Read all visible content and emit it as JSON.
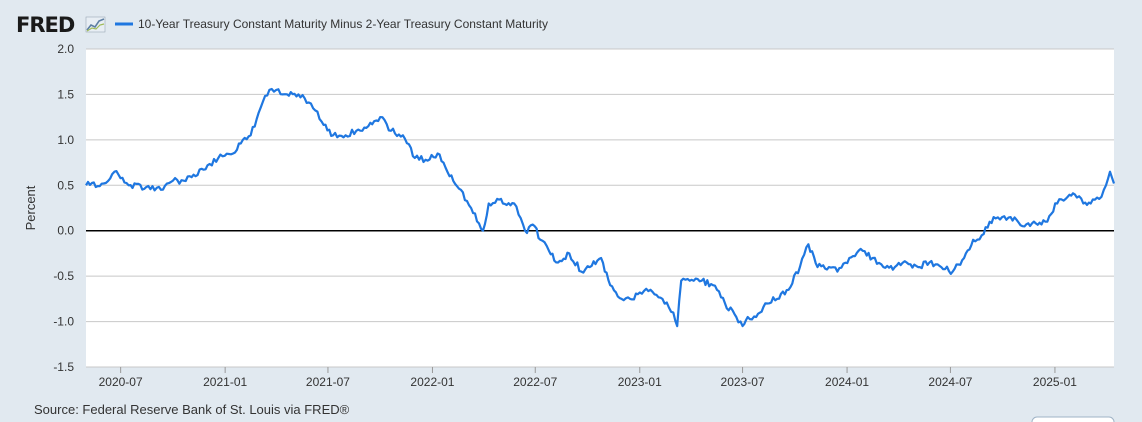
{
  "header": {
    "logo_text": "FRED",
    "logo_icon": "fred-chart-icon"
  },
  "source": "Source: Federal Reserve Bank of St. Louis via FRED®",
  "colors": {
    "series": "#1f77e0",
    "zero_line": "#000000",
    "grid": "#c8c8c8",
    "plot_bg": "#ffffff",
    "page_bg": "#e1e9f0"
  },
  "chart_data": {
    "type": "line",
    "title": "",
    "xlabel": "",
    "ylabel": "Percent",
    "ylim": [
      -1.5,
      2.0
    ],
    "xlim": [
      "2020-05-01",
      "2025-04-15"
    ],
    "yticks": [
      2.0,
      1.5,
      1.0,
      0.5,
      0.0,
      -0.5,
      -1.0,
      -1.5
    ],
    "ytick_labels": [
      "2.0",
      "1.5",
      "1.0",
      "0.5",
      "0.0",
      "-0.5",
      "-1.0",
      "-1.5"
    ],
    "xticks": [
      {
        "date": "2020-07-01",
        "label": "2020-07"
      },
      {
        "date": "2021-01-01",
        "label": "2021-01"
      },
      {
        "date": "2021-07-01",
        "label": "2021-07"
      },
      {
        "date": "2022-01-01",
        "label": "2022-01"
      },
      {
        "date": "2022-07-01",
        "label": "2022-07"
      },
      {
        "date": "2023-01-01",
        "label": "2023-01"
      },
      {
        "date": "2023-07-01",
        "label": "2023-07"
      },
      {
        "date": "2024-01-01",
        "label": "2024-01"
      },
      {
        "date": "2024-07-01",
        "label": "2024-07"
      },
      {
        "date": "2025-01-01",
        "label": "2025-01"
      }
    ],
    "grid": true,
    "zero_line": true,
    "legend": "top-left",
    "series": [
      {
        "name": "10-Year Treasury Constant Maturity Minus 2-Year Treasury Constant Maturity",
        "x": [
          "2020-05-01",
          "2020-06-01",
          "2020-06-20",
          "2020-07-15",
          "2020-08-15",
          "2020-09-10",
          "2020-10-01",
          "2020-10-20",
          "2020-11-10",
          "2020-12-01",
          "2020-12-20",
          "2021-01-15",
          "2021-02-01",
          "2021-02-15",
          "2021-03-01",
          "2021-03-20",
          "2021-04-01",
          "2021-04-20",
          "2021-05-10",
          "2021-06-01",
          "2021-06-20",
          "2021-07-10",
          "2021-08-01",
          "2021-08-20",
          "2021-09-10",
          "2021-10-01",
          "2021-10-20",
          "2021-11-10",
          "2021-12-01",
          "2021-12-20",
          "2022-01-10",
          "2022-01-31",
          "2022-02-20",
          "2022-03-10",
          "2022-03-31",
          "2022-04-10",
          "2022-04-25",
          "2022-05-05",
          "2022-05-25",
          "2022-06-13",
          "2022-06-30",
          "2022-07-10",
          "2022-07-25",
          "2022-08-10",
          "2022-08-30",
          "2022-09-20",
          "2022-10-05",
          "2022-10-25",
          "2022-11-10",
          "2022-11-30",
          "2022-12-15",
          "2023-01-01",
          "2023-01-20",
          "2023-02-10",
          "2023-03-01",
          "2023-03-08",
          "2023-03-15",
          "2023-03-30",
          "2023-04-20",
          "2023-05-10",
          "2023-05-31",
          "2023-06-20",
          "2023-07-01",
          "2023-07-10",
          "2023-07-25",
          "2023-08-10",
          "2023-08-31",
          "2023-09-20",
          "2023-10-10",
          "2023-10-25",
          "2023-11-10",
          "2023-11-30",
          "2023-12-15",
          "2024-01-05",
          "2024-01-25",
          "2024-02-15",
          "2024-03-05",
          "2024-03-25",
          "2024-04-15",
          "2024-05-05",
          "2024-05-25",
          "2024-06-15",
          "2024-07-05",
          "2024-07-25",
          "2024-08-10",
          "2024-08-25",
          "2024-09-15",
          "2024-09-30",
          "2024-10-15",
          "2024-11-05",
          "2024-11-25",
          "2024-12-15",
          "2025-01-05",
          "2025-01-20",
          "2025-02-05",
          "2025-02-20",
          "2025-03-05",
          "2025-03-20",
          "2025-04-01",
          "2025-04-08",
          "2025-04-15"
        ],
        "y": [
          0.5,
          0.52,
          0.65,
          0.5,
          0.48,
          0.45,
          0.55,
          0.55,
          0.6,
          0.72,
          0.8,
          0.85,
          1.0,
          1.05,
          1.3,
          1.55,
          1.55,
          1.5,
          1.5,
          1.4,
          1.2,
          1.05,
          1.05,
          1.1,
          1.15,
          1.25,
          1.1,
          1.05,
          0.8,
          0.78,
          0.85,
          0.6,
          0.45,
          0.25,
          0.0,
          0.3,
          0.35,
          0.3,
          0.3,
          0.0,
          0.05,
          -0.1,
          -0.22,
          -0.35,
          -0.25,
          -0.45,
          -0.4,
          -0.3,
          -0.6,
          -0.75,
          -0.75,
          -0.68,
          -0.65,
          -0.75,
          -0.9,
          -1.05,
          -0.55,
          -0.55,
          -0.55,
          -0.6,
          -0.8,
          -0.95,
          -1.05,
          -0.95,
          -0.95,
          -0.8,
          -0.75,
          -0.65,
          -0.4,
          -0.15,
          -0.4,
          -0.4,
          -0.45,
          -0.3,
          -0.2,
          -0.3,
          -0.4,
          -0.4,
          -0.35,
          -0.4,
          -0.35,
          -0.4,
          -0.45,
          -0.3,
          -0.1,
          -0.05,
          0.15,
          0.15,
          0.15,
          0.05,
          0.1,
          0.1,
          0.3,
          0.35,
          0.4,
          0.3,
          0.3,
          0.35,
          0.5,
          0.65,
          0.52
        ]
      }
    ]
  }
}
